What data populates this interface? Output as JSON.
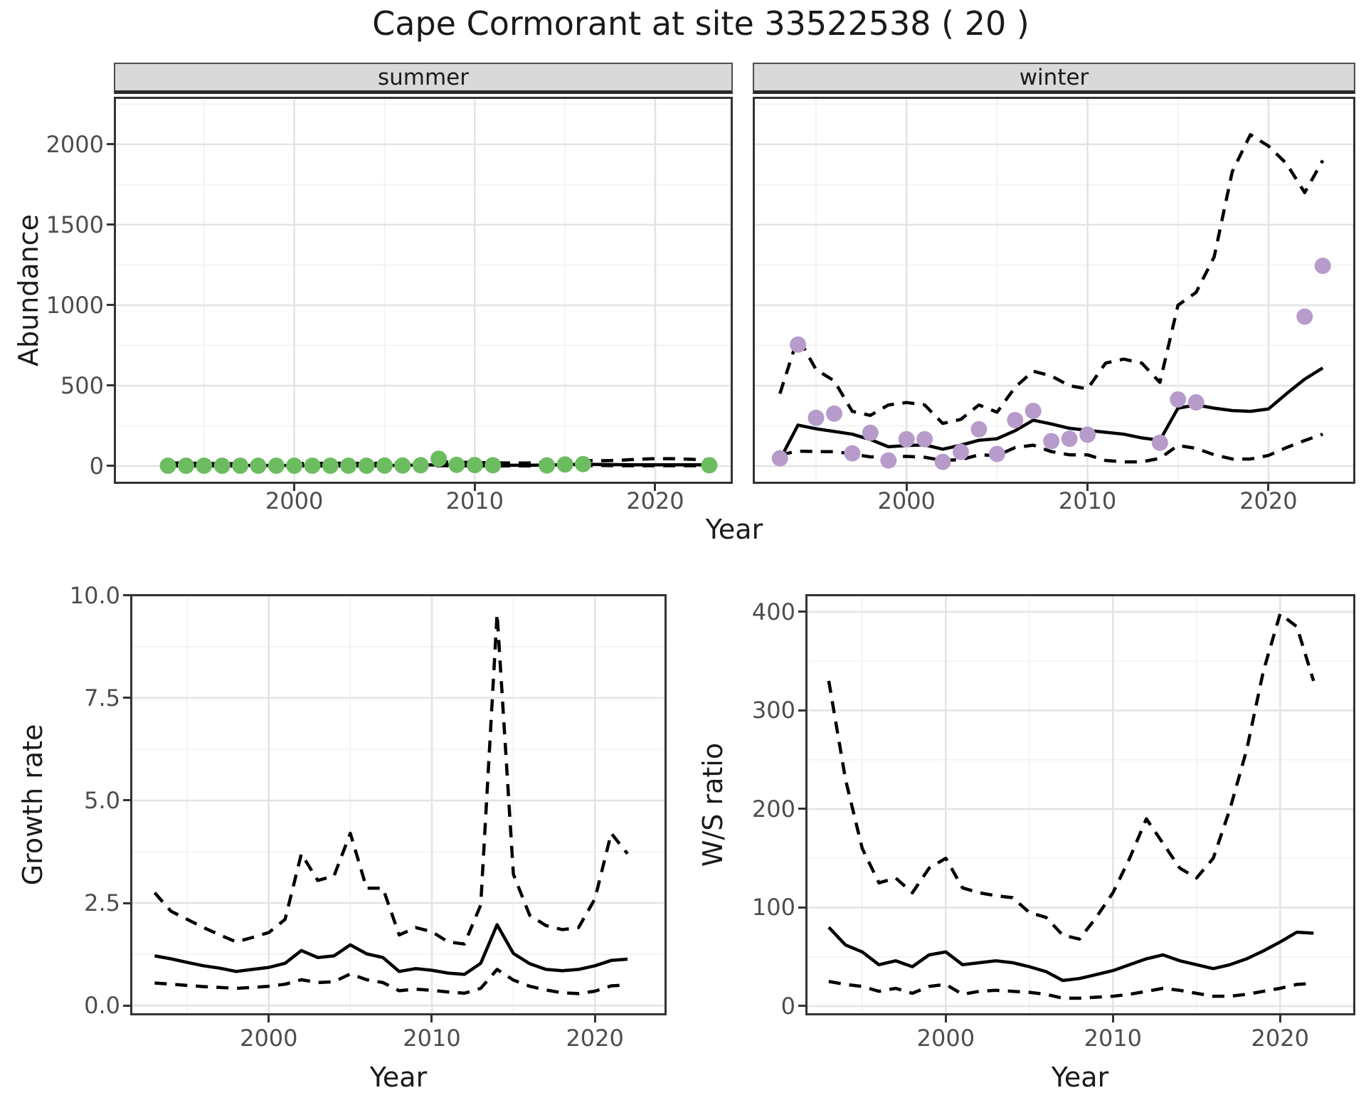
{
  "title": "Cape Cormorant at site 33522538 ( 20 )",
  "labels": {
    "facet_summer": "summer",
    "facet_winter": "winter",
    "abundance_axis": "Abundance",
    "growth_axis": "Growth rate",
    "ws_axis": "W/S ratio",
    "year_axis_top": "Year",
    "year_axis_bottom_left": "Year",
    "year_axis_bottom_right": "Year"
  },
  "colors": {
    "summer_points": "#6bbd5f",
    "winter_points": "#b79bcb",
    "line": "#000000",
    "strip_bg": "#d9d9d9",
    "panel_border": "#333333",
    "grid_major": "#e3e3e3",
    "grid_minor": "#f1f1f1",
    "axis_text": "#4d4d4d"
  },
  "chart_data": [
    {
      "id": "summer",
      "type": "line",
      "facet_label": "summer",
      "xlabel": "Year",
      "ylabel": "Abundance",
      "xlim": [
        1990.0,
        2024.3
      ],
      "ylim": [
        -110.6,
        2296
      ],
      "x_major_ticks": [
        2000,
        2010,
        2020
      ],
      "x_minor_ticks": [
        1995,
        2005,
        2015
      ],
      "y_major_ticks": [
        0,
        500,
        1000,
        1500,
        2000
      ],
      "y_minor_ticks": [
        250,
        750,
        1250,
        1750,
        2250
      ],
      "y_tick_labels": [
        "0",
        "500",
        "1000",
        "1500",
        "2000"
      ],
      "x_tick_labels": [
        "2000",
        "2010",
        "2020"
      ],
      "show_y_axis": true,
      "years": [
        1993,
        1994,
        1995,
        1996,
        1997,
        1998,
        1999,
        2000,
        2001,
        2002,
        2003,
        2004,
        2005,
        2006,
        2007,
        2008,
        2009,
        2010,
        2011,
        2012,
        2013,
        2014,
        2015,
        2016,
        2017,
        2018,
        2019,
        2020,
        2021,
        2022,
        2023
      ],
      "series": [
        {
          "name": "upper_ci",
          "style": "dashed",
          "values": [
            20,
            18,
            16,
            15,
            14,
            14,
            14,
            15,
            16,
            18,
            17,
            17,
            18,
            19,
            22,
            26,
            24,
            22,
            20,
            19,
            19,
            22,
            30,
            34,
            33,
            36,
            42,
            46,
            46,
            42,
            38
          ]
        },
        {
          "name": "lower_ci",
          "style": "dashed",
          "values": [
            1,
            1,
            1,
            1,
            1,
            1,
            1,
            1,
            1,
            1,
            1,
            1,
            1,
            1,
            1,
            2,
            2,
            1,
            1,
            1,
            1,
            1,
            2,
            3,
            3,
            2,
            2,
            2,
            2,
            2,
            2
          ]
        },
        {
          "name": "estimate",
          "style": "solid",
          "values": [
            4,
            4,
            4,
            4,
            4,
            4,
            4,
            4,
            4,
            4,
            4,
            4,
            4,
            5,
            6,
            8,
            7,
            6,
            5,
            5,
            5,
            6,
            9,
            11,
            10,
            9,
            8,
            8,
            8,
            8,
            8
          ]
        }
      ],
      "points": {
        "name": "observed_counts",
        "color_key": "summer_points",
        "data": [
          [
            1993,
            2
          ],
          [
            1994,
            2
          ],
          [
            1995,
            2
          ],
          [
            1996,
            2
          ],
          [
            1997,
            2
          ],
          [
            1998,
            2
          ],
          [
            1999,
            2
          ],
          [
            2000,
            2
          ],
          [
            2001,
            2
          ],
          [
            2002,
            2
          ],
          [
            2003,
            2
          ],
          [
            2004,
            2
          ],
          [
            2005,
            3
          ],
          [
            2006,
            3
          ],
          [
            2007,
            5
          ],
          [
            2008,
            45
          ],
          [
            2009,
            8
          ],
          [
            2010,
            6
          ],
          [
            2011,
            5
          ],
          [
            2014,
            4
          ],
          [
            2015,
            10
          ],
          [
            2016,
            12
          ],
          [
            2023,
            5
          ]
        ]
      }
    },
    {
      "id": "winter",
      "type": "line",
      "facet_label": "winter",
      "xlabel": "Year",
      "ylabel": "Abundance",
      "xlim": [
        1991.5,
        2024.8
      ],
      "ylim": [
        -110.6,
        2296
      ],
      "x_major_ticks": [
        2000,
        2010,
        2020
      ],
      "x_minor_ticks": [
        1995,
        2005,
        2015
      ],
      "y_major_ticks": [
        0,
        500,
        1000,
        1500,
        2000
      ],
      "y_minor_ticks": [
        250,
        750,
        1250,
        1750,
        2250
      ],
      "y_tick_labels": null,
      "x_tick_labels": [
        "2000",
        "2010",
        "2020"
      ],
      "show_y_axis": false,
      "years": [
        1993,
        1994,
        1995,
        1996,
        1997,
        1998,
        1999,
        2000,
        2001,
        2002,
        2003,
        2004,
        2005,
        2006,
        2007,
        2008,
        2009,
        2010,
        2011,
        2012,
        2013,
        2014,
        2015,
        2016,
        2017,
        2018,
        2019,
        2020,
        2021,
        2022,
        2023
      ],
      "series": [
        {
          "name": "upper_ci",
          "style": "dashed",
          "values": [
            450,
            800,
            600,
            530,
            340,
            315,
            380,
            395,
            380,
            265,
            290,
            380,
            335,
            490,
            590,
            560,
            500,
            480,
            640,
            665,
            640,
            520,
            1000,
            1080,
            1300,
            1830,
            2060,
            1990,
            1880,
            1700,
            1900
          ]
        },
        {
          "name": "lower_ci",
          "style": "dashed",
          "values": [
            70,
            93,
            90,
            90,
            75,
            57,
            58,
            60,
            55,
            35,
            40,
            70,
            65,
            115,
            130,
            90,
            70,
            70,
            35,
            26,
            26,
            48,
            128,
            110,
            70,
            44,
            44,
            66,
            115,
            159,
            198
          ]
        },
        {
          "name": "estimate",
          "style": "solid",
          "values": [
            40,
            255,
            232,
            215,
            198,
            165,
            120,
            128,
            132,
            105,
            130,
            160,
            170,
            220,
            285,
            262,
            235,
            222,
            210,
            198,
            175,
            160,
            360,
            380,
            360,
            345,
            340,
            355,
            450,
            540,
            610
          ]
        }
      ],
      "points": {
        "name": "observed_counts",
        "color_key": "winter_points",
        "data": [
          [
            1993,
            48
          ],
          [
            1994,
            755
          ],
          [
            1995,
            300
          ],
          [
            1996,
            326
          ],
          [
            1997,
            79
          ],
          [
            1998,
            207
          ],
          [
            1999,
            35
          ],
          [
            2000,
            167
          ],
          [
            2001,
            167
          ],
          [
            2002,
            26
          ],
          [
            2003,
            88
          ],
          [
            2004,
            229
          ],
          [
            2005,
            75
          ],
          [
            2006,
            286
          ],
          [
            2007,
            343
          ],
          [
            2008,
            155
          ],
          [
            2009,
            170
          ],
          [
            2010,
            195
          ],
          [
            2014,
            145
          ],
          [
            2015,
            414
          ],
          [
            2016,
            396
          ],
          [
            2022,
            929
          ],
          [
            2023,
            1245
          ]
        ]
      }
    },
    {
      "id": "growth",
      "type": "line",
      "facet_label": null,
      "xlabel": "Year",
      "ylabel": "Growth rate",
      "xlim": [
        1991.5,
        2024.4
      ],
      "ylim": [
        -0.24,
        10.03
      ],
      "x_major_ticks": [
        2000,
        2010,
        2020
      ],
      "x_minor_ticks": [
        1995,
        2005,
        2015
      ],
      "y_major_ticks": [
        0.0,
        2.5,
        5.0,
        7.5,
        10.0
      ],
      "y_minor_ticks": [
        1.25,
        3.75,
        6.25,
        8.75
      ],
      "y_tick_labels": [
        "0.0",
        "2.5",
        "5.0",
        "7.5",
        "10.0"
      ],
      "x_tick_labels": [
        "2000",
        "2010",
        "2020"
      ],
      "show_y_axis": true,
      "years": [
        1993,
        1994,
        1995,
        1996,
        1997,
        1998,
        1999,
        2000,
        2001,
        2002,
        2003,
        2004,
        2005,
        2006,
        2007,
        2008,
        2009,
        2010,
        2011,
        2012,
        2013,
        2014,
        2015,
        2016,
        2017,
        2018,
        2019,
        2020,
        2021,
        2022
      ],
      "series": [
        {
          "name": "upper_ci",
          "style": "dashed",
          "values": [
            2.75,
            2.3,
            2.1,
            1.9,
            1.72,
            1.55,
            1.66,
            1.78,
            2.1,
            3.7,
            3.05,
            3.16,
            4.2,
            2.86,
            2.86,
            1.72,
            1.9,
            1.8,
            1.55,
            1.5,
            2.45,
            9.55,
            3.2,
            2.2,
            1.95,
            1.85,
            1.9,
            2.6,
            4.2,
            3.7
          ]
        },
        {
          "name": "lower_ci",
          "style": "dashed",
          "values": [
            0.55,
            0.52,
            0.49,
            0.46,
            0.44,
            0.42,
            0.44,
            0.47,
            0.52,
            0.63,
            0.56,
            0.58,
            0.77,
            0.63,
            0.56,
            0.36,
            0.4,
            0.37,
            0.33,
            0.3,
            0.42,
            0.88,
            0.62,
            0.47,
            0.38,
            0.31,
            0.29,
            0.35,
            0.48,
            0.5
          ]
        },
        {
          "name": "estimate",
          "style": "solid",
          "values": [
            1.21,
            1.14,
            1.05,
            0.97,
            0.91,
            0.83,
            0.88,
            0.93,
            1.03,
            1.34,
            1.17,
            1.21,
            1.48,
            1.26,
            1.17,
            0.83,
            0.9,
            0.86,
            0.79,
            0.76,
            1.03,
            1.97,
            1.27,
            1.02,
            0.88,
            0.85,
            0.88,
            0.97,
            1.1,
            1.13
          ]
        }
      ],
      "points": null
    },
    {
      "id": "ws",
      "type": "line",
      "facet_label": null,
      "xlabel": "Year",
      "ylabel": "W/S ratio",
      "xlim": [
        1991.6,
        2024.5
      ],
      "ylim": [
        -9.4,
        418
      ],
      "x_major_ticks": [
        2000,
        2010,
        2020
      ],
      "x_minor_ticks": [
        1995,
        2005,
        2015
      ],
      "y_major_ticks": [
        0,
        100,
        200,
        300,
        400
      ],
      "y_minor_ticks": [
        50,
        150,
        250,
        350
      ],
      "y_tick_labels": [
        "0",
        "100",
        "200",
        "300",
        "400"
      ],
      "x_tick_labels": [
        "2000",
        "2010",
        "2020"
      ],
      "show_y_axis": true,
      "years": [
        1993,
        1994,
        1995,
        1996,
        1997,
        1998,
        1999,
        2000,
        2001,
        2002,
        2003,
        2004,
        2005,
        2006,
        2007,
        2008,
        2009,
        2010,
        2011,
        2012,
        2013,
        2014,
        2015,
        2016,
        2017,
        2018,
        2019,
        2020,
        2021,
        2022
      ],
      "series": [
        {
          "name": "upper_ci",
          "style": "dashed",
          "values": [
            330,
            230,
            160,
            125,
            130,
            115,
            140,
            150,
            120,
            115,
            112,
            110,
            95,
            90,
            72,
            68,
            90,
            115,
            150,
            190,
            165,
            140,
            130,
            150,
            200,
            260,
            340,
            398,
            385,
            330
          ]
        },
        {
          "name": "lower_ci",
          "style": "dashed",
          "values": [
            25,
            22,
            20,
            15,
            18,
            13,
            20,
            22,
            12,
            15,
            16,
            15,
            14,
            12,
            8,
            8,
            9,
            10,
            12,
            15,
            18,
            16,
            13,
            10,
            10,
            12,
            15,
            18,
            22,
            23
          ]
        },
        {
          "name": "estimate",
          "style": "solid",
          "values": [
            80,
            62,
            55,
            42,
            46,
            40,
            52,
            55,
            42,
            44,
            46,
            44,
            40,
            35,
            26,
            28,
            32,
            36,
            42,
            48,
            52,
            46,
            42,
            38,
            42,
            48,
            56,
            65,
            75,
            74
          ]
        }
      ],
      "points": null
    }
  ]
}
